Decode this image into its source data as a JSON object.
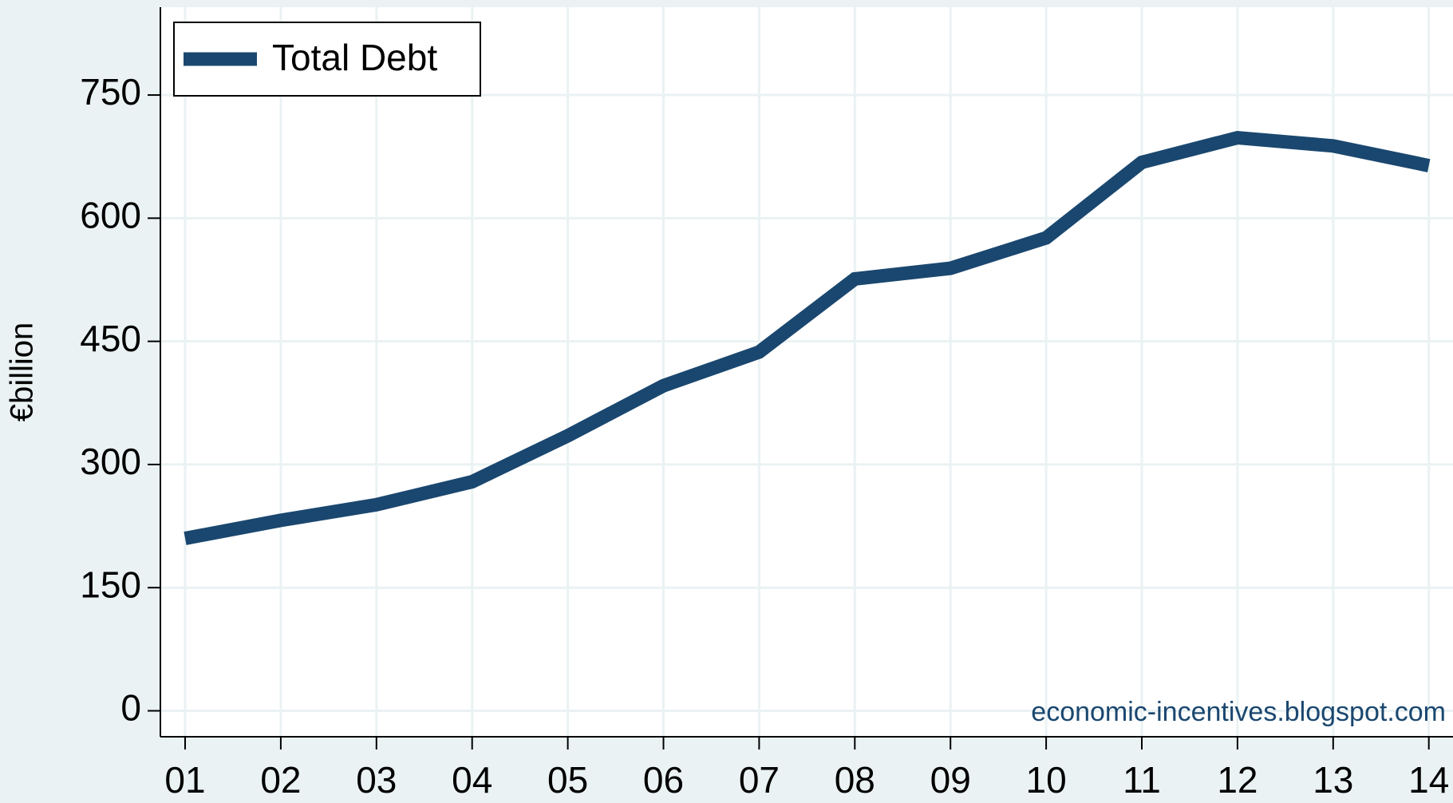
{
  "chart_data": {
    "type": "line",
    "y_label": "€billion",
    "annotation": "economic-incentives.blogspot.com",
    "categories": [
      "01",
      "02",
      "03",
      "04",
      "05",
      "06",
      "07",
      "08",
      "09",
      "10",
      "11",
      "12",
      "13",
      "14"
    ],
    "series": [
      {
        "name": "Total Debt",
        "color": "#1a476f",
        "values": [
          210,
          232,
          251,
          279,
          335,
          396,
          437,
          526,
          539,
          576,
          668,
          698,
          688,
          664
        ]
      }
    ],
    "ylim": [
      -31.6,
      857
    ],
    "yticks": [
      0,
      150,
      300,
      450,
      600,
      750
    ],
    "grid": true,
    "legend": "top-left"
  }
}
